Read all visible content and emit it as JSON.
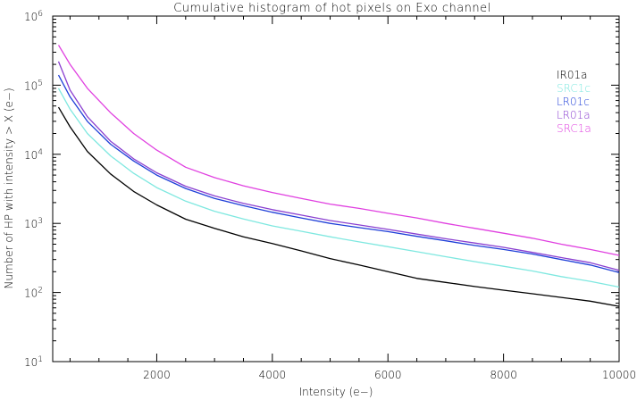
{
  "chart_data": {
    "type": "line",
    "title": "Cumulative histogram of hot pixels on Exo channel",
    "xlabel": "Intensity (e−)",
    "ylabel": "Number of HP with intensity > X (e−)",
    "xlim": [
      200,
      10000
    ],
    "ylim": [
      10,
      1000000
    ],
    "yscale": "log",
    "xticks": [
      "2000",
      "4000",
      "6000",
      "8000",
      "10000"
    ],
    "yticks": [
      {
        "base": "10",
        "exp": "1"
      },
      {
        "base": "10",
        "exp": "2"
      },
      {
        "base": "10",
        "exp": "3"
      },
      {
        "base": "10",
        "exp": "4"
      },
      {
        "base": "10",
        "exp": "5"
      },
      {
        "base": "10",
        "exp": "6"
      }
    ],
    "legend_position": "top-right",
    "grid": false,
    "series": [
      {
        "name": "IR01a",
        "color": "#000000",
        "x": [
          300,
          500,
          800,
          1200,
          1600,
          2000,
          2500,
          3000,
          3500,
          4000,
          4500,
          5000,
          5500,
          6000,
          6500,
          7000,
          7500,
          8000,
          8500,
          9000,
          9500,
          10000
        ],
        "y": [
          48000,
          25000,
          11000,
          5200,
          2900,
          1850,
          1150,
          850,
          640,
          510,
          400,
          310,
          250,
          200,
          160,
          140,
          122,
          108,
          96,
          85,
          75,
          63
        ]
      },
      {
        "name": "SRC1c",
        "color": "#7fe8e0",
        "x": [
          300,
          500,
          800,
          1200,
          1600,
          2000,
          2500,
          3000,
          3500,
          4000,
          4500,
          5000,
          5500,
          6000,
          6500,
          7000,
          7500,
          8000,
          8500,
          9000,
          9500,
          10000
        ],
        "y": [
          90000,
          45000,
          20000,
          9500,
          5300,
          3300,
          2100,
          1500,
          1160,
          920,
          770,
          640,
          540,
          460,
          390,
          330,
          280,
          240,
          205,
          170,
          145,
          120
        ]
      },
      {
        "name": "LR01c",
        "color": "#1f3fd8",
        "x": [
          300,
          500,
          800,
          1200,
          1600,
          2000,
          2500,
          3000,
          3500,
          4000,
          4500,
          5000,
          5500,
          6000,
          6500,
          7000,
          7500,
          8000,
          8500,
          9000,
          9500,
          10000
        ],
        "y": [
          140000,
          68000,
          30000,
          14000,
          8000,
          5000,
          3200,
          2300,
          1800,
          1450,
          1200,
          1000,
          870,
          760,
          650,
          560,
          480,
          420,
          360,
          300,
          250,
          195
        ]
      },
      {
        "name": "LR01a",
        "color": "#8a3fd0",
        "x": [
          300,
          500,
          800,
          1200,
          1600,
          2000,
          2500,
          3000,
          3500,
          4000,
          4500,
          5000,
          5500,
          6000,
          6500,
          7000,
          7500,
          8000,
          8500,
          9000,
          9500,
          10000
        ],
        "y": [
          220000,
          85000,
          35000,
          15500,
          8600,
          5400,
          3450,
          2500,
          1950,
          1580,
          1320,
          1100,
          950,
          820,
          700,
          600,
          520,
          450,
          380,
          320,
          270,
          210
        ]
      },
      {
        "name": "SRC1a",
        "color": "#e040e0",
        "x": [
          300,
          500,
          800,
          1200,
          1600,
          2000,
          2500,
          3000,
          3500,
          4000,
          4500,
          5000,
          5500,
          6000,
          6500,
          7000,
          7500,
          8000,
          8500,
          9000,
          9500,
          10000
        ],
        "y": [
          380000,
          200000,
          90000,
          40000,
          20000,
          11500,
          6500,
          4600,
          3500,
          2800,
          2300,
          1900,
          1650,
          1400,
          1200,
          1000,
          850,
          720,
          610,
          500,
          420,
          345
        ]
      }
    ]
  }
}
